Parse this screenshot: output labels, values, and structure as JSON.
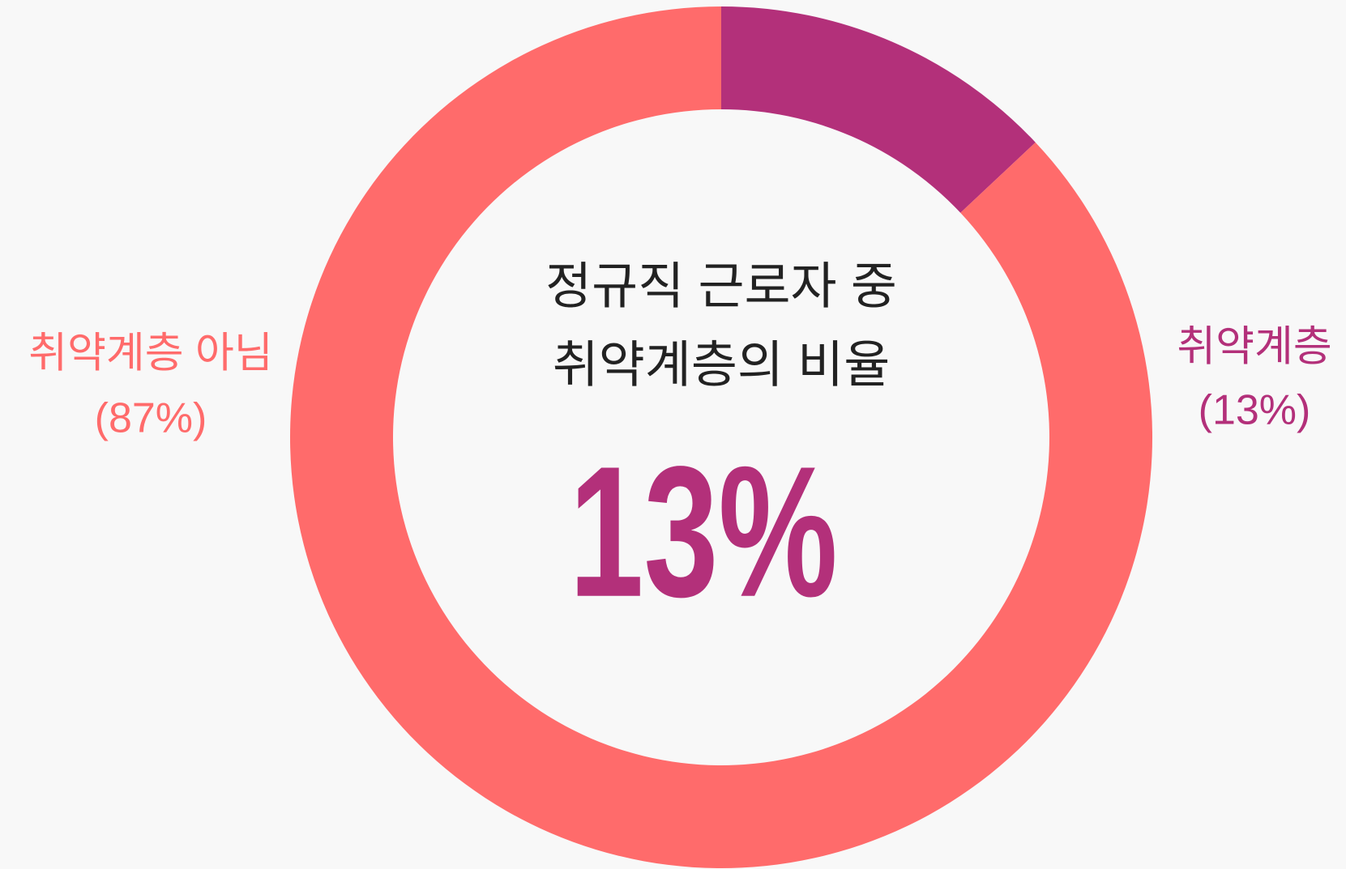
{
  "chart_data": {
    "type": "donut",
    "title": [
      "정규직 근로자 중",
      "취약계층의 비율"
    ],
    "center_label": "13%",
    "categories": [
      "취약계층",
      "취약계층 아님"
    ],
    "values": [
      13,
      87
    ],
    "value_labels": [
      "(13%)",
      "(87%)"
    ],
    "colors": [
      "#b3307a",
      "#ff6b6b"
    ]
  }
}
